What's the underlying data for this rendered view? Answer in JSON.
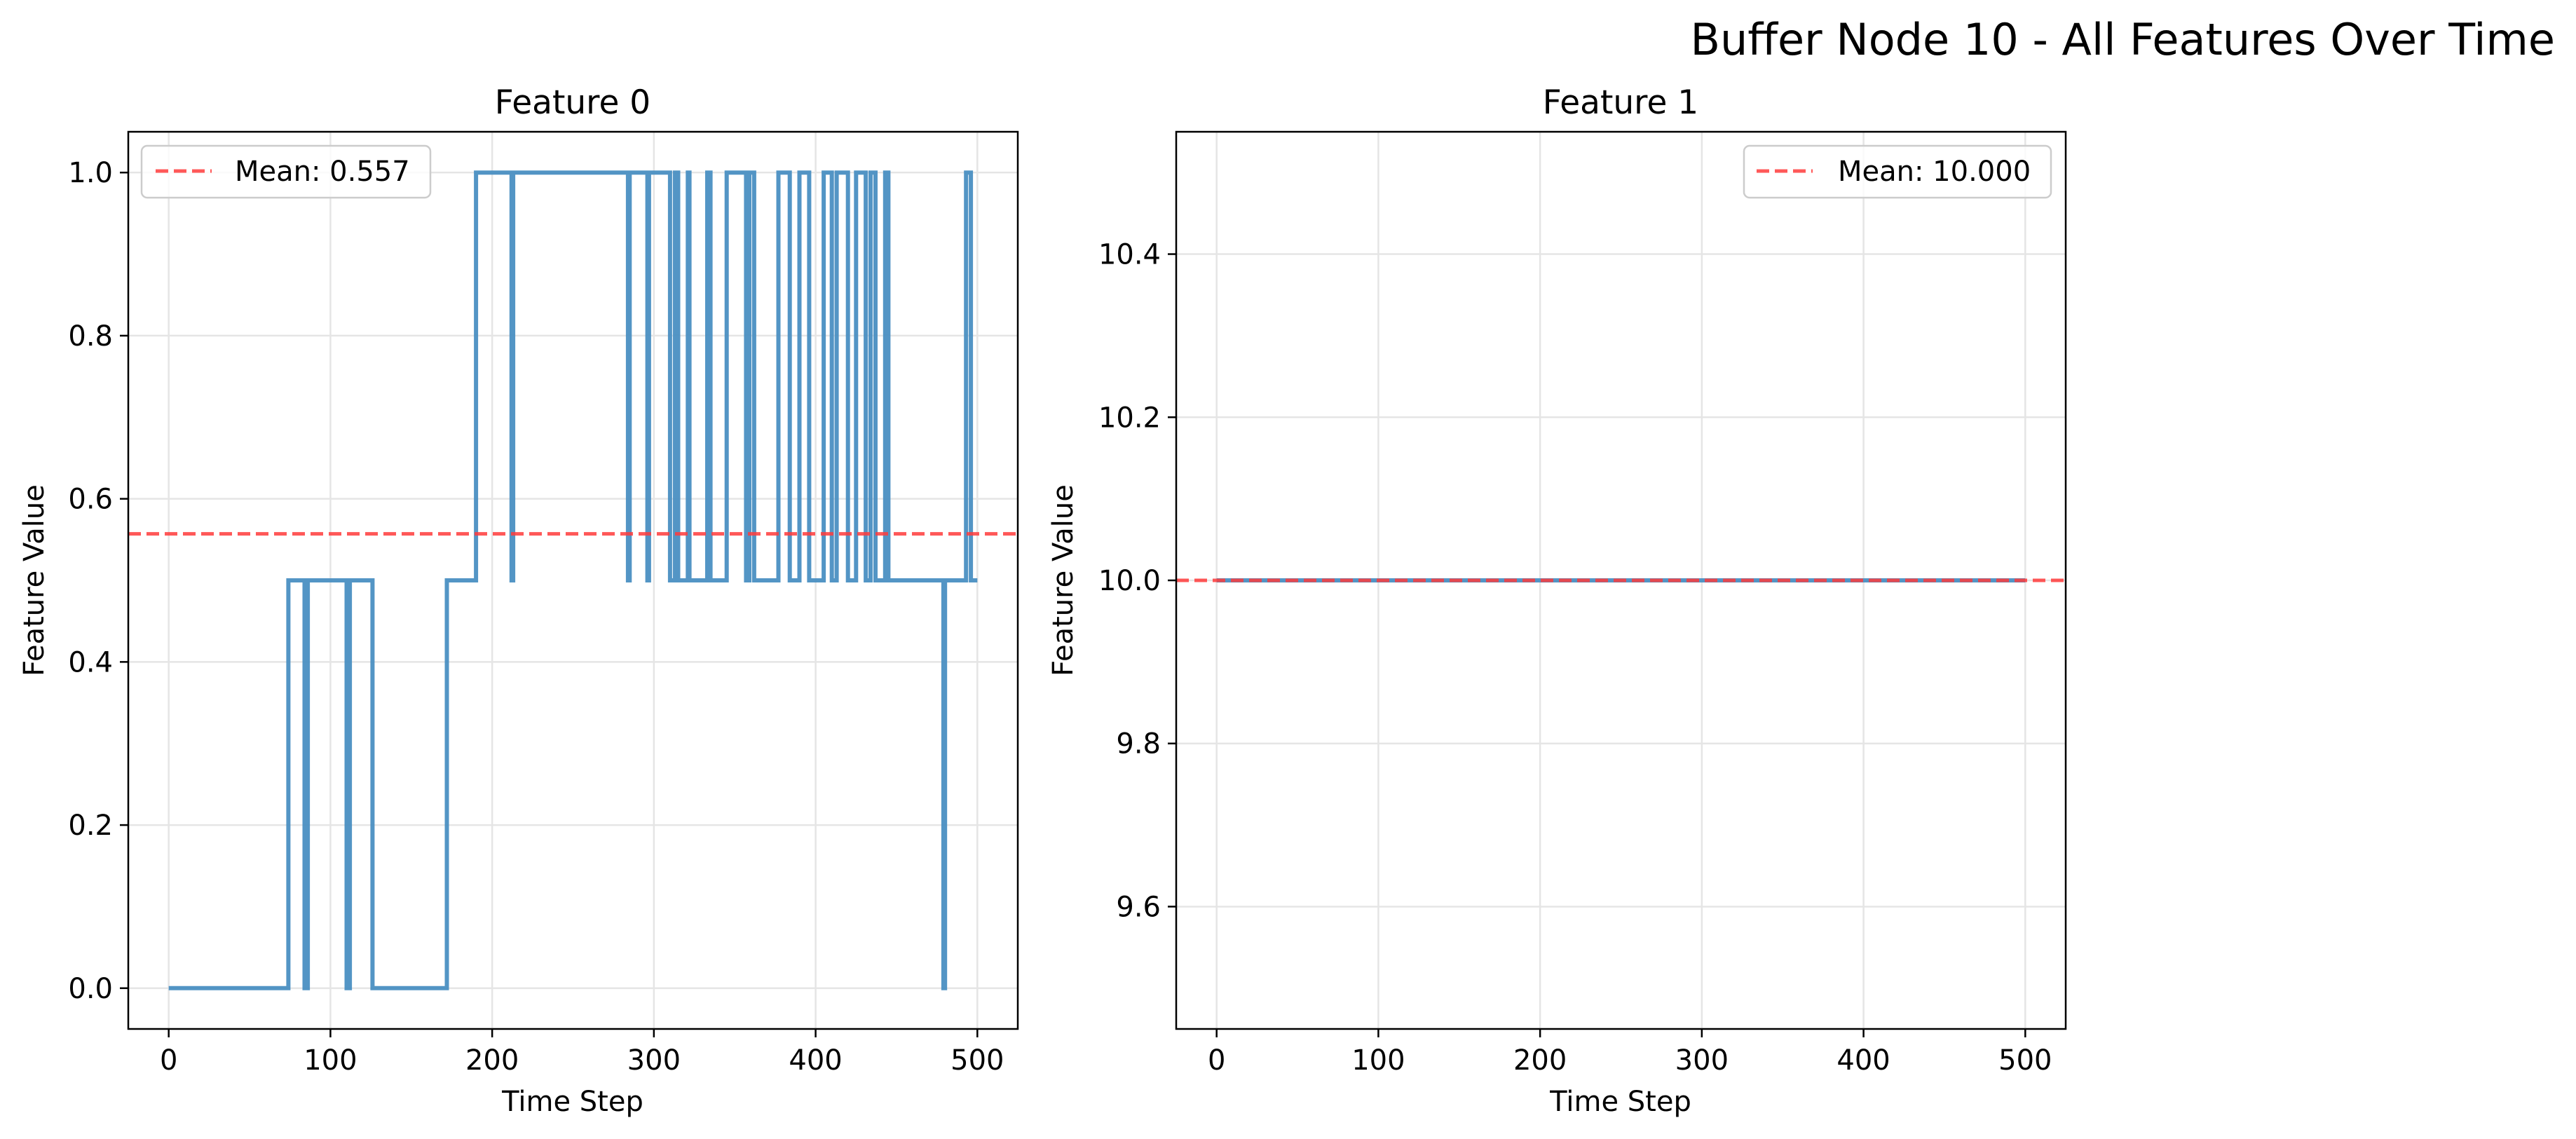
{
  "figure": {
    "title": "Buffer Node 10 - All Features Over Time"
  },
  "colors": {
    "series": "#4a8fc2",
    "mean": "#ff3b3b",
    "grid": "#e5e5e5",
    "axes": "#000000"
  },
  "chart_data": [
    {
      "type": "line",
      "step": true,
      "title": "Feature 0",
      "xlabel": "Time Step",
      "ylabel": "Feature Value",
      "xlim": [
        -25,
        525
      ],
      "ylim": [
        -0.05,
        1.05
      ],
      "xticks": [
        0,
        100,
        200,
        300,
        400,
        500
      ],
      "yticks": [
        0.0,
        0.2,
        0.4,
        0.6,
        0.8,
        1.0
      ],
      "xtick_labels": [
        "0",
        "100",
        "200",
        "300",
        "400",
        "500"
      ],
      "ytick_labels": [
        "0.0",
        "0.2",
        "0.4",
        "0.6",
        "0.8",
        "1.0"
      ],
      "grid": true,
      "legend_position": "top-left",
      "mean": {
        "label": "Mean: 0.557",
        "value": 0.557
      },
      "series": [
        {
          "x": [
            0,
            74,
            84,
            86,
            110,
            112,
            126,
            172,
            190,
            212,
            213,
            284,
            285,
            296,
            297,
            300,
            310,
            313,
            315,
            321,
            322,
            333,
            335,
            345,
            357,
            359,
            362,
            377,
            384,
            390,
            396,
            405,
            410,
            413,
            420,
            425,
            431,
            434,
            437,
            443,
            445,
            446,
            479,
            480,
            493,
            496,
            500
          ],
          "y": [
            0.0,
            0.5,
            0.0,
            0.5,
            0.0,
            0.5,
            0.0,
            0.5,
            1.0,
            0.5,
            1.0,
            0.5,
            1.0,
            0.5,
            1.0,
            1.0,
            0.5,
            1.0,
            0.5,
            1.0,
            0.5,
            1.0,
            0.5,
            1.0,
            0.5,
            1.0,
            0.5,
            1.0,
            0.5,
            1.0,
            0.5,
            1.0,
            0.5,
            1.0,
            0.5,
            1.0,
            0.5,
            1.0,
            0.5,
            1.0,
            0.5,
            0.5,
            0.0,
            0.5,
            1.0,
            0.5,
            0.5
          ]
        }
      ]
    },
    {
      "type": "line",
      "title": "Feature 1",
      "xlabel": "Time Step",
      "ylabel": "Feature Value",
      "xlim": [
        -25,
        525
      ],
      "ylim": [
        9.45,
        10.55
      ],
      "xticks": [
        0,
        100,
        200,
        300,
        400,
        500
      ],
      "yticks": [
        9.6,
        9.8,
        10.0,
        10.2,
        10.4
      ],
      "xtick_labels": [
        "0",
        "100",
        "200",
        "300",
        "400",
        "500"
      ],
      "ytick_labels": [
        "9.6",
        "9.8",
        "10.0",
        "10.2",
        "10.4"
      ],
      "grid": true,
      "legend_position": "top-right",
      "mean": {
        "label": "Mean: 10.000",
        "value": 10.0
      },
      "series": [
        {
          "x": [
            0,
            500
          ],
          "y": [
            10.0,
            10.0
          ]
        }
      ]
    }
  ]
}
